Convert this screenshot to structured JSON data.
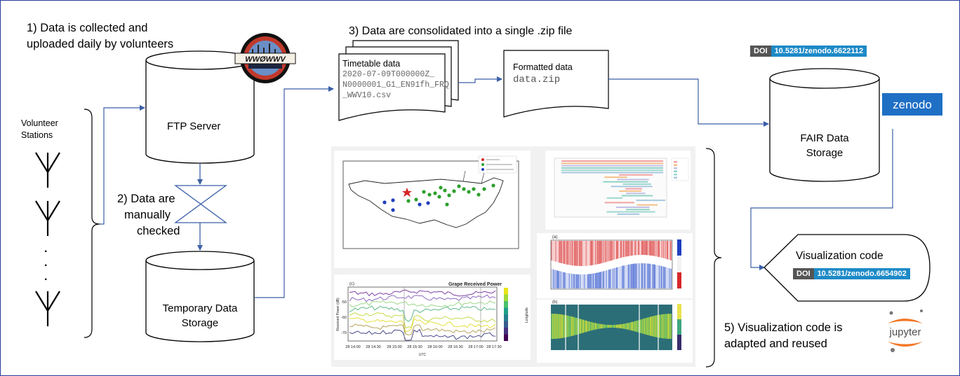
{
  "steps": {
    "step1_line1": "1) Data is collected and",
    "step1_line2": "uploaded daily by volunteers",
    "step2_line1": "2) Data are",
    "step2_line2": "manually",
    "step2_line3": "checked",
    "step3": "3) Data are consolidated into a single .zip file",
    "step5_line1": "5) Visualization code is",
    "step5_line2": "adapted and reused"
  },
  "volunteer": {
    "line1": "Volunteer",
    "line2": "Stations",
    "dots": [
      "·",
      "·",
      "·"
    ]
  },
  "ftp": {
    "label": "FTP Server",
    "logo_text": "WWØWWV"
  },
  "temp_storage": {
    "line1": "Temporary Data",
    "line2": "Storage"
  },
  "timetable": {
    "title": "Timetable data",
    "line1": "2020-07-09T000000Z_",
    "line2": "N0000001_G1_EN91fh_FRQ",
    "line3": "_WWV10.csv"
  },
  "formatted": {
    "title": "Formatted data",
    "file": "data.zip"
  },
  "fair": {
    "line1": "FAIR Data",
    "line2": "Storage"
  },
  "doi1": {
    "key": "DOI",
    "value": "10.5281/zenodo.6622112"
  },
  "zenodo": {
    "logo": "zenodo"
  },
  "viz": {
    "title": "Visualization code"
  },
  "doi2": {
    "key": "DOI",
    "value": "10.5281/zenodo.6654902"
  },
  "jupyter": {
    "logo": "jupyter"
  },
  "figures": {
    "power_title": "Grape Received Power",
    "power_ylabel": "Received Power (dB)",
    "power_xlabel": "UTC",
    "power_cbar": "Longitude",
    "power_xticks": [
      "28 14:00",
      "28 14:30",
      "28 15:00",
      "28 15:30",
      "28 16:00",
      "28 16:30",
      "28 17:00",
      "28 17:30"
    ],
    "power_yticks": [
      "-50",
      "-60",
      "-70"
    ],
    "panel_a": "(a)",
    "panel_b": "(b)",
    "panel_c": "(c)",
    "panel_d": "(d)"
  },
  "colors": {
    "frame": "#2b3a9a",
    "doi_key": "#555555",
    "doi_value": "#1d8ac7",
    "zenodo_bg": "#1f6fc5",
    "jupyter_orange": "#f37726",
    "map_red": "#d62728",
    "map_green": "#2ca02c",
    "map_blue": "#1f3fbf"
  }
}
